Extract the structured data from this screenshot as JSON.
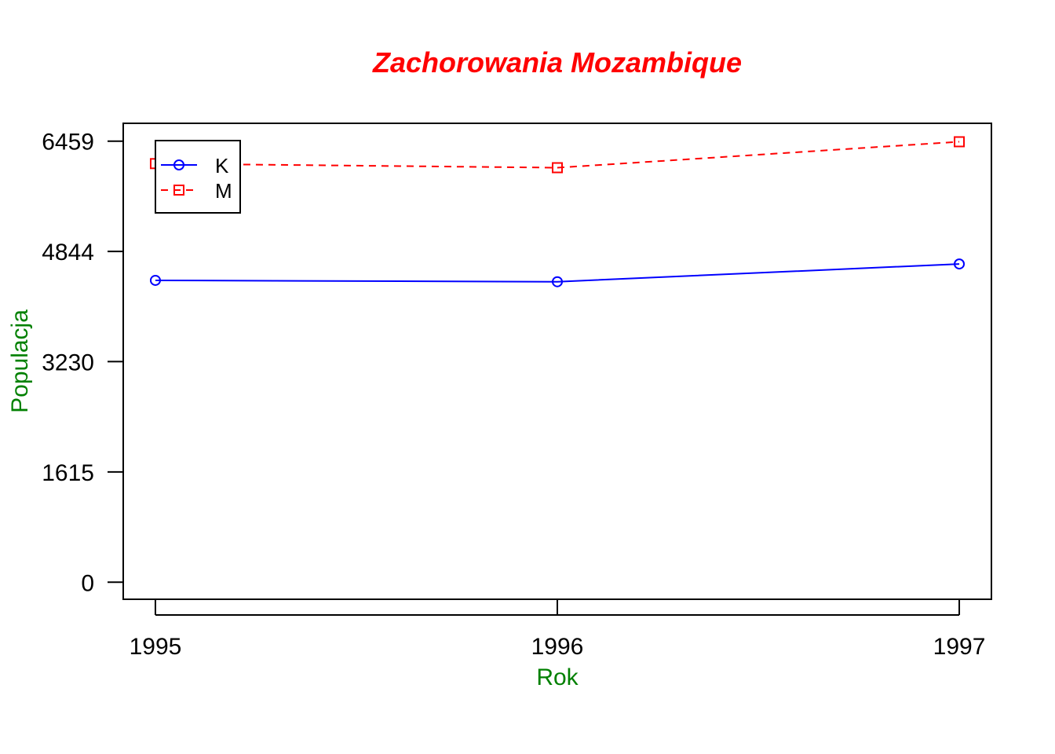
{
  "chart_data": {
    "type": "line",
    "title": "Zachorowania Mozambique",
    "xlabel": "Rok",
    "ylabel": "Populacja",
    "x": [
      1995,
      1996,
      1997
    ],
    "x_tick_labels": [
      "1995",
      "1996",
      "1997"
    ],
    "y_ticks": [
      0,
      1615,
      3230,
      4844,
      6459
    ],
    "y_tick_labels": [
      "0",
      "1615",
      "3230",
      "4844",
      "6459"
    ],
    "xlim": [
      1994.92,
      1997.08
    ],
    "ylim": [
      -250,
      6720
    ],
    "grid": false,
    "legend_position": "top-left",
    "series": [
      {
        "name": "K",
        "values": [
          4420,
          4400,
          4660
        ],
        "color": "#0000ff",
        "line_style": "solid",
        "marker": "circle"
      },
      {
        "name": "M",
        "values": [
          6130,
          6070,
          6450
        ],
        "color": "#ff0000",
        "line_style": "dashed",
        "marker": "square"
      }
    ],
    "colors": {
      "title": "#ff0000",
      "axis_labels": "#008000",
      "axes": "#000000"
    }
  }
}
